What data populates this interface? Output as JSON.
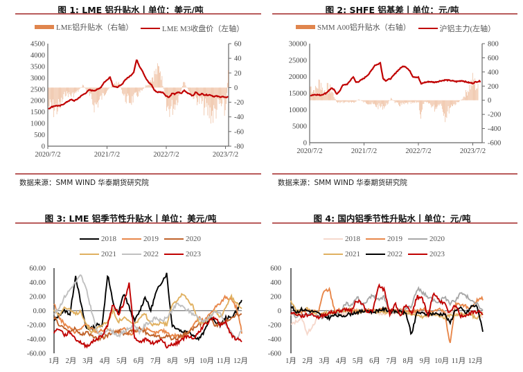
{
  "colors": {
    "rule": "#b85a5a",
    "bar_orange": "#e08a5c",
    "line_red": "#c00000"
  },
  "figures": [
    {
      "title": "图  1: LME 铝升贴水丨单位：美元/吨",
      "legend": [
        {
          "label": "LME铝升贴水（右轴）",
          "kind": "bar",
          "color": "#e0854d"
        },
        {
          "label": "LME M3收盘价（左轴）",
          "kind": "line",
          "color": "#c00000"
        }
      ],
      "source": "数据来源：SMM WIND 华泰期货研究院"
    },
    {
      "title": "图  2: SHFE 铝基差丨单位：元/吨",
      "legend": [
        {
          "label": "SMM A00铝升贴水（右轴）",
          "kind": "bar",
          "color": "#e0854d"
        },
        {
          "label": "沪铝主力(左轴）",
          "kind": "line",
          "color": "#c00000"
        }
      ],
      "source": "数据来源：SMM WIND 华泰期货研究院"
    },
    {
      "title": "图  3: LME 铝季节性升贴水丨单位：美元/吨",
      "legend": [
        {
          "label": "2018",
          "kind": "line",
          "color": "#000000"
        },
        {
          "label": "2019",
          "kind": "line",
          "color": "#e8874a"
        },
        {
          "label": "2020",
          "kind": "line",
          "color": "#c0622a"
        },
        {
          "label": "2021",
          "kind": "line",
          "color": "#e0b060"
        },
        {
          "label": "2022",
          "kind": "line",
          "color": "#c0c0c0"
        },
        {
          "label": "2023",
          "kind": "line",
          "color": "#c00000"
        }
      ]
    },
    {
      "title": "图  4: 国内铝季节性升贴水丨单位：元/吨",
      "legend": [
        {
          "label": "2018",
          "kind": "line",
          "color": "#f6d8cc"
        },
        {
          "label": "2019",
          "kind": "line",
          "color": "#e8874a"
        },
        {
          "label": "2020",
          "kind": "line",
          "color": "#a8a8a8"
        },
        {
          "label": "2021",
          "kind": "line",
          "color": "#e0b060"
        },
        {
          "label": "2022",
          "kind": "line",
          "color": "#000000"
        },
        {
          "label": "2023",
          "kind": "line",
          "color": "#c00000"
        }
      ]
    }
  ],
  "chart_data": [
    {
      "type": "bar+line",
      "title": "LME 铝升贴水 | 单位：美元/吨",
      "categories": [
        "2020/7/2",
        "2021/7/2",
        "2022/7/2",
        "2023/7/2"
      ],
      "y_left": {
        "label": "LME M3收盘价",
        "ticks": [
          0,
          500,
          1000,
          1500,
          2000,
          2500,
          3000,
          3500,
          4000,
          4500
        ],
        "range": [
          0,
          4500
        ]
      },
      "y_right": {
        "label": "LME铝升贴水",
        "ticks": [
          -80,
          -60,
          -40,
          -20,
          0,
          20,
          40,
          60
        ],
        "range": [
          -80,
          60
        ]
      },
      "series": [
        {
          "name": "LME M3收盘价（左轴）",
          "axis": "left",
          "kind": "line",
          "color": "#c00000",
          "x": [
            0,
            0.05,
            0.1,
            0.15,
            0.2,
            0.25,
            0.3,
            0.35,
            0.4,
            0.45,
            0.5,
            0.55,
            0.6,
            0.65,
            0.7,
            0.75,
            0.8,
            0.85,
            0.9,
            0.95,
            1.0,
            1.05,
            1.1,
            1.15,
            1.2,
            1.25,
            1.3,
            1.35,
            1.4,
            1.45,
            1.5,
            1.55,
            1.6,
            1.65,
            1.7,
            1.75,
            1.8,
            1.85,
            1.9,
            1.95,
            2.0,
            2.05,
            2.1,
            2.15,
            2.2,
            2.25,
            2.3,
            2.35,
            2.4,
            2.45,
            2.5,
            2.55,
            2.6,
            2.65,
            2.7,
            2.75,
            2.8,
            2.85,
            2.9,
            2.95,
            3.0,
            3.05
          ],
          "values": [
            1620,
            1700,
            1760,
            1780,
            1760,
            1830,
            1900,
            1990,
            2040,
            1990,
            2070,
            2180,
            2270,
            2350,
            2470,
            2440,
            2450,
            2500,
            2600,
            2800,
            2900,
            3050,
            2650,
            2580,
            2620,
            2700,
            2900,
            3000,
            3100,
            3250,
            3800,
            3500,
            3300,
            3000,
            2800,
            2700,
            2450,
            2370,
            2380,
            2350,
            2200,
            2150,
            2320,
            2280,
            2380,
            2300,
            2450,
            2350,
            2300,
            2200,
            2380,
            2250,
            2300,
            2250,
            2250,
            2250,
            2180,
            2200,
            2160,
            2180,
            2120,
            2200
          ]
        },
        {
          "name": "LME铝升贴水（右轴）",
          "axis": "right",
          "kind": "bar",
          "color": "#e0854d",
          "x": [
            0,
            0.1,
            0.2,
            0.3,
            0.4,
            0.5,
            0.6,
            0.7,
            0.8,
            0.9,
            1.0,
            1.1,
            1.2,
            1.3,
            1.4,
            1.5,
            1.6,
            1.7,
            1.8,
            1.9,
            2.0,
            2.1,
            2.2,
            2.3,
            2.4,
            2.5,
            2.6,
            2.7,
            2.8,
            2.9,
            3.0,
            3.05
          ],
          "values": [
            -35,
            -40,
            -38,
            -10,
            -15,
            -8,
            5,
            -15,
            -35,
            -20,
            -5,
            5,
            10,
            -20,
            -25,
            -15,
            -5,
            10,
            25,
            38,
            -40,
            -38,
            -20,
            10,
            -10,
            -20,
            -30,
            -45,
            -50,
            -30,
            -45,
            40
          ]
        }
      ]
    },
    {
      "type": "bar+line",
      "title": "SHFE 铝基差 | 单位：元/吨",
      "categories": [
        "2020/7/2",
        "2021/7/2",
        "2022/7/2",
        "2023/7/2"
      ],
      "y_left": {
        "label": "沪铝主力",
        "ticks": [
          0,
          5000,
          10000,
          15000,
          20000,
          25000,
          30000
        ],
        "range": [
          0,
          30000
        ]
      },
      "y_right": {
        "label": "SMM A00铝升贴水",
        "ticks": [
          -600,
          -400,
          -200,
          0,
          200,
          400,
          600,
          800
        ],
        "range": [
          -600,
          800
        ]
      },
      "series": [
        {
          "name": "沪铝主力(左轴）",
          "axis": "left",
          "kind": "line",
          "color": "#c00000",
          "x": [
            0,
            0.1,
            0.2,
            0.3,
            0.4,
            0.45,
            0.5,
            0.55,
            0.6,
            0.7,
            0.8,
            0.85,
            0.9,
            1.0,
            1.1,
            1.2,
            1.25,
            1.3,
            1.35,
            1.4,
            1.5,
            1.6,
            1.7,
            1.75,
            1.8,
            1.85,
            1.9,
            2.0,
            2.05,
            2.1,
            2.2,
            2.3,
            2.4,
            2.5,
            2.6,
            2.7,
            2.8,
            2.9,
            3.0,
            3.05,
            3.15
          ],
          "values": [
            14300,
            14600,
            14400,
            15000,
            16500,
            16000,
            14800,
            15500,
            17300,
            17800,
            20000,
            18300,
            18500,
            19500,
            21000,
            23500,
            23700,
            24200,
            19500,
            18800,
            19500,
            21500,
            23000,
            23200,
            22500,
            21500,
            20000,
            19800,
            17800,
            18200,
            18500,
            18300,
            18700,
            19000,
            18800,
            18500,
            18800,
            18300,
            18000,
            18400,
            18700
          ]
        },
        {
          "name": "SMM A00铝升贴水（右轴）",
          "axis": "right",
          "kind": "bar",
          "color": "#e0854d",
          "x": [
            0,
            0.1,
            0.2,
            0.25,
            0.3,
            0.4,
            0.5,
            0.6,
            0.7,
            0.8,
            0.9,
            1.0,
            1.1,
            1.2,
            1.3,
            1.4,
            1.5,
            1.6,
            1.7,
            1.8,
            1.9,
            2.0,
            2.05,
            2.1,
            2.2,
            2.3,
            2.4,
            2.5,
            2.6,
            2.7,
            2.8,
            2.9,
            3.0,
            3.1
          ],
          "values": [
            280,
            180,
            380,
            150,
            240,
            200,
            -50,
            -40,
            -30,
            -60,
            20,
            -40,
            -60,
            -100,
            -130,
            -110,
            40,
            -80,
            -90,
            -60,
            -60,
            -30,
            -350,
            -50,
            -60,
            -160,
            -50,
            -300,
            -100,
            -60,
            20,
            180,
            380,
            220
          ]
        }
      ]
    },
    {
      "type": "line",
      "title": "LME 铝季节性升贴水 | 单位：美元/吨",
      "categories": [
        "1月",
        "2月",
        "3月",
        "4月",
        "5月",
        "6月",
        "7月",
        "8月",
        "9月",
        "10月",
        "11月",
        "12月"
      ],
      "ylim": [
        -60,
        60
      ],
      "yticks": [
        "60.00",
        "40.00",
        "20.00",
        "0.00",
        "-20.00",
        "-40.00",
        "-60.00"
      ],
      "series": [
        {
          "name": "2018",
          "color": "#000000",
          "values": [
            -15,
            -5,
            0,
            -5,
            50,
            10,
            -25,
            -25,
            -20,
            -20,
            52,
            10,
            -5,
            25,
            5,
            -15,
            0,
            20,
            0,
            25,
            40,
            52,
            -20,
            -25,
            -30,
            -28,
            -35,
            -40,
            -30,
            -10,
            -15,
            -20,
            -10,
            -10,
            0,
            15
          ]
        },
        {
          "name": "2019",
          "color": "#e8874a",
          "values": [
            10,
            -10,
            -20,
            -25,
            -30,
            -25,
            -20,
            -25,
            -30,
            -28,
            -25,
            -30,
            -30,
            -25,
            -35,
            -30,
            -28,
            -25,
            -30,
            -32,
            -28,
            -30,
            -35,
            -35,
            -38,
            -30,
            -20,
            -10,
            -15,
            -5,
            5,
            10,
            20,
            15,
            5,
            -30
          ]
        },
        {
          "name": "2020",
          "color": "#c0622a",
          "values": [
            -10,
            -20,
            -25,
            -30,
            -25,
            -35,
            -30,
            -35,
            -40,
            -38,
            -35,
            -30,
            -28,
            -32,
            -30,
            -28,
            -25,
            -30,
            -35,
            -35,
            -38,
            -35,
            -40,
            -38,
            -35,
            -30,
            -25,
            -20,
            -15,
            -10,
            -20,
            -20,
            -15,
            -10,
            -5,
            -5
          ]
        },
        {
          "name": "2021",
          "color": "#e0b060",
          "values": [
            0,
            -5,
            5,
            0,
            -5,
            0,
            -20,
            -30,
            -25,
            -20,
            -15,
            0,
            -15,
            -10,
            -15,
            -20,
            -10,
            -5,
            -20,
            -20,
            -15,
            -20,
            10,
            15,
            25,
            15,
            5,
            -15,
            -20,
            -10,
            0,
            -10,
            5,
            20,
            10,
            5
          ]
        },
        {
          "name": "2022",
          "color": "#c0c0c0",
          "values": [
            -5,
            5,
            20,
            30,
            40,
            50,
            30,
            0,
            -30,
            -35,
            -25,
            -30,
            -35,
            -30,
            -25,
            -20,
            -30,
            -20,
            -15,
            -10,
            -15,
            -10,
            0,
            10,
            5,
            0,
            -5,
            -10,
            -15,
            -10,
            0,
            -5,
            -20,
            -30,
            -40,
            -28
          ]
        },
        {
          "name": "2023",
          "color": "#c00000",
          "values": [
            -30,
            -25,
            -35,
            -30,
            -40,
            -45,
            -50,
            -45,
            -40,
            -35,
            -20,
            10,
            -5,
            10,
            40,
            -40,
            -45,
            -40,
            -45,
            -45,
            -40,
            -50,
            -48,
            -45,
            -40,
            -35,
            -40,
            -30,
            -20,
            -15,
            -10,
            -20,
            -15,
            -35,
            -40,
            -42
          ]
        }
      ]
    },
    {
      "type": "line",
      "title": "国内铝季节性升贴水 | 单位：元/吨",
      "categories": [
        "1月",
        "2月",
        "3月",
        "4月",
        "5月",
        "6月",
        "7月",
        "8月",
        "9月",
        "10月",
        "11月",
        "12月"
      ],
      "ylim": [
        -600,
        600
      ],
      "yticks": [
        "600",
        "400",
        "200",
        "0",
        "-200",
        "-400",
        "-600"
      ],
      "series": [
        {
          "name": "2018",
          "color": "#f6d8cc",
          "values": [
            -200,
            -150,
            -100,
            -330,
            -200,
            -100,
            -50,
            -30,
            -20,
            -50,
            -40,
            -30,
            -20,
            -10,
            0,
            -20,
            -30,
            -40,
            -30,
            -20,
            -50,
            -30,
            -20,
            -10,
            -20,
            -30,
            -40,
            -50,
            -30,
            -20,
            -40,
            -60,
            -50,
            -30,
            -20,
            -100
          ]
        },
        {
          "name": "2019",
          "color": "#e8874a",
          "values": [
            -50,
            -30,
            -20,
            0,
            0,
            -20,
            270,
            300,
            0,
            10,
            20,
            0,
            -10,
            -20,
            0,
            10,
            20,
            30,
            0,
            -10,
            10,
            0,
            -20,
            0,
            20,
            0,
            -10,
            20,
            -20,
            -480,
            100,
            80,
            60,
            30,
            150,
            170
          ]
        },
        {
          "name": "2020",
          "color": "#a8a8a8",
          "values": [
            -50,
            -80,
            -60,
            -50,
            -60,
            -80,
            -100,
            -80,
            -50,
            -20,
            100,
            70,
            200,
            100,
            150,
            220,
            150,
            200,
            -30,
            -20,
            10,
            30,
            60,
            320,
            250,
            200,
            150,
            100,
            200,
            100,
            150,
            250,
            200,
            150,
            100,
            0
          ]
        },
        {
          "name": "2021",
          "color": "#e0b060",
          "values": [
            130,
            20,
            10,
            20,
            -30,
            -20,
            -40,
            -30,
            -20,
            -10,
            0,
            10,
            -10,
            -20,
            -10,
            0,
            -20,
            -30,
            -20,
            -10,
            -10,
            -20,
            -40,
            -60,
            -80,
            -60,
            -40,
            -60,
            -120,
            -60,
            -80,
            -40,
            -50,
            -60,
            -120,
            0
          ]
        },
        {
          "name": "2022",
          "color": "#000000",
          "values": [
            60,
            -20,
            20,
            0,
            -10,
            -40,
            -80,
            -100,
            -60,
            -80,
            -60,
            -40,
            -20,
            -10,
            0,
            -20,
            10,
            20,
            0,
            -10,
            -20,
            -40,
            -340,
            -20,
            -40,
            -50,
            -40,
            -50,
            -40,
            -180,
            20,
            30,
            -40,
            70,
            60,
            -300
          ]
        },
        {
          "name": "2023",
          "color": "#c00000",
          "values": [
            -30,
            -50,
            -80,
            -60,
            -50,
            -100,
            -60,
            -30,
            -20,
            0,
            20,
            0,
            150,
            100,
            -20,
            10,
            350,
            300,
            -50,
            100,
            -80,
            100,
            -50,
            200,
            170,
            -80,
            250,
            150,
            100,
            -40,
            80,
            -80,
            -60,
            -30,
            -10,
            -40
          ]
        }
      ]
    }
  ]
}
